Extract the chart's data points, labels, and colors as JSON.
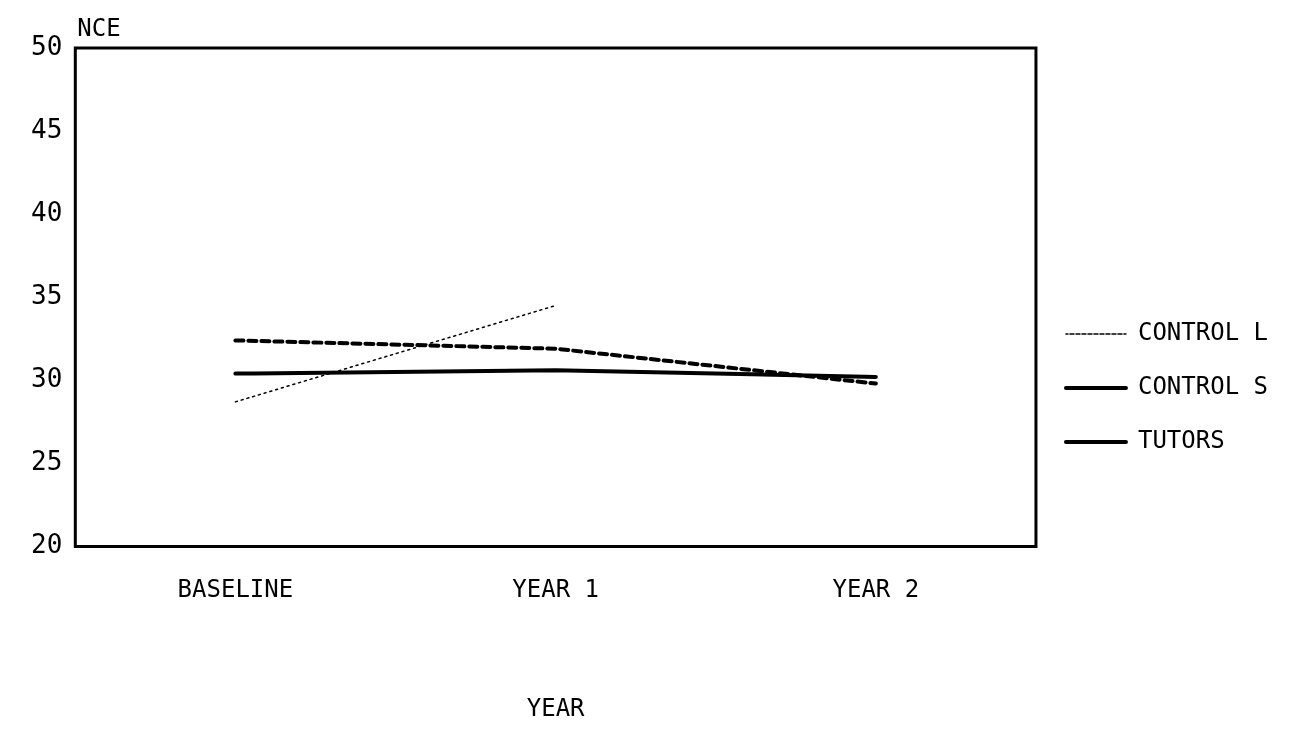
{
  "chart_data": {
    "type": "line",
    "xlabel": "YEAR",
    "ylabel": "NCE",
    "categories": [
      "BASELINE",
      "YEAR 1",
      "YEAR 2"
    ],
    "series": [
      {
        "name": "CONTROL L",
        "color": "#000000",
        "line_style": "dotted",
        "values": [
          28.7,
          34.5,
          null
        ]
      },
      {
        "name": "CONTROL S",
        "color": "#000000",
        "line_style": "dashed",
        "values": [
          32.4,
          31.9,
          29.8
        ]
      },
      {
        "name": "TUTORS",
        "color": "#000000",
        "line_style": "solid",
        "values": [
          30.4,
          30.6,
          30.2
        ]
      }
    ],
    "ylim": [
      20,
      50
    ],
    "yticks": [
      20,
      25,
      30,
      35,
      40,
      45,
      50
    ],
    "grid": false,
    "legend": "right",
    "marker": "none"
  }
}
